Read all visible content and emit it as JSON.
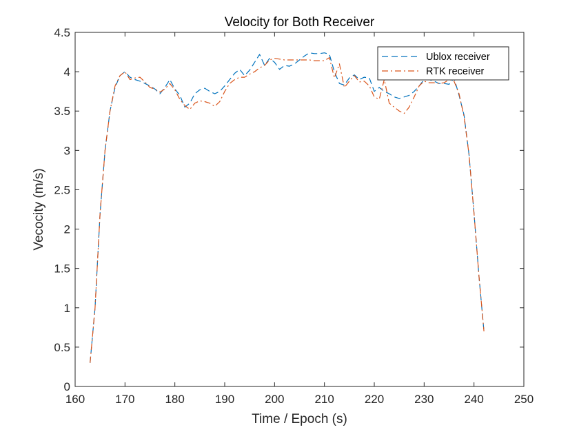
{
  "chart_data": {
    "type": "line",
    "title": "Velocity for Both Receiver",
    "xlabel": "Time / Epoch (s)",
    "ylabel": "Vecocity (m/s)",
    "xlim": [
      160,
      250
    ],
    "ylim": [
      0,
      4.5
    ],
    "xticks": [
      160,
      170,
      180,
      190,
      200,
      210,
      220,
      230,
      240,
      250
    ],
    "yticks": [
      0,
      0.5,
      1,
      1.5,
      2,
      2.5,
      3,
      3.5,
      4,
      4.5
    ],
    "grid": false,
    "legend_position": "top-right",
    "series": [
      {
        "name": "Ublox receiver",
        "color": "#0072BD",
        "style": "dashed",
        "x": [
          163,
          164,
          165,
          166,
          167,
          168,
          169,
          170,
          171,
          172,
          173,
          174,
          175,
          176,
          177,
          178,
          179,
          180,
          181,
          182,
          183,
          184,
          185,
          186,
          187,
          188,
          189,
          190,
          191,
          192,
          193,
          194,
          195,
          196,
          197,
          198,
          199,
          200,
          201,
          202,
          203,
          204,
          205,
          206,
          207,
          208,
          209,
          210,
          211,
          212,
          213,
          214,
          215,
          216,
          217,
          218,
          219,
          220,
          221,
          222,
          223,
          224,
          225,
          226,
          227,
          228,
          229,
          230,
          231,
          232,
          233,
          234,
          235,
          236,
          237,
          238,
          239,
          240,
          241,
          242
        ],
        "values": [
          0.3,
          1.0,
          2.2,
          3.0,
          3.5,
          3.8,
          3.95,
          4.0,
          3.93,
          3.9,
          3.88,
          3.85,
          3.82,
          3.78,
          3.72,
          3.8,
          3.9,
          3.78,
          3.7,
          3.55,
          3.6,
          3.72,
          3.77,
          3.79,
          3.75,
          3.72,
          3.75,
          3.82,
          3.9,
          3.98,
          4.03,
          3.95,
          4.02,
          4.12,
          4.22,
          4.08,
          4.17,
          4.12,
          4.03,
          4.08,
          4.07,
          4.1,
          4.15,
          4.2,
          4.24,
          4.23,
          4.23,
          4.24,
          4.22,
          4.0,
          3.85,
          3.83,
          3.92,
          3.96,
          3.9,
          3.93,
          3.92,
          3.75,
          3.8,
          3.75,
          3.72,
          3.68,
          3.66,
          3.68,
          3.7,
          3.75,
          3.82,
          3.9,
          3.9,
          3.88,
          3.85,
          3.85,
          3.84,
          3.92,
          3.7,
          3.45,
          2.95,
          2.2,
          1.4,
          0.7
        ]
      },
      {
        "name": "RTK receiver",
        "color": "#D95319",
        "style": "dashdot",
        "x": [
          163,
          164,
          165,
          166,
          167,
          168,
          169,
          170,
          171,
          172,
          173,
          174,
          175,
          176,
          177,
          178,
          179,
          180,
          181,
          182,
          183,
          184,
          185,
          186,
          187,
          188,
          189,
          190,
          191,
          192,
          193,
          194,
          195,
          196,
          197,
          198,
          199,
          200,
          201,
          202,
          203,
          204,
          205,
          206,
          207,
          208,
          209,
          210,
          211,
          212,
          213,
          214,
          215,
          216,
          217,
          218,
          219,
          220,
          221,
          222,
          223,
          224,
          225,
          226,
          227,
          228,
          229,
          230,
          231,
          232,
          233,
          234,
          235,
          236,
          237,
          238,
          239,
          240,
          241,
          242
        ],
        "values": [
          0.3,
          1.0,
          2.2,
          3.0,
          3.5,
          3.82,
          3.95,
          4.0,
          3.9,
          3.92,
          3.93,
          3.87,
          3.8,
          3.78,
          3.74,
          3.78,
          3.85,
          3.77,
          3.65,
          3.57,
          3.52,
          3.6,
          3.63,
          3.62,
          3.6,
          3.56,
          3.62,
          3.75,
          3.85,
          3.9,
          3.93,
          3.93,
          3.97,
          4.0,
          4.05,
          4.08,
          4.15,
          4.17,
          4.16,
          4.15,
          4.15,
          4.15,
          4.15,
          4.15,
          4.15,
          4.14,
          4.14,
          4.14,
          4.18,
          3.92,
          4.1,
          3.8,
          3.88,
          3.95,
          3.87,
          3.88,
          3.82,
          3.68,
          3.65,
          3.9,
          3.6,
          3.55,
          3.5,
          3.47,
          3.55,
          3.68,
          3.82,
          3.88,
          3.86,
          3.86,
          3.85,
          3.86,
          3.9,
          3.88,
          3.72,
          3.43,
          2.95,
          2.2,
          1.4,
          0.7
        ]
      }
    ]
  }
}
